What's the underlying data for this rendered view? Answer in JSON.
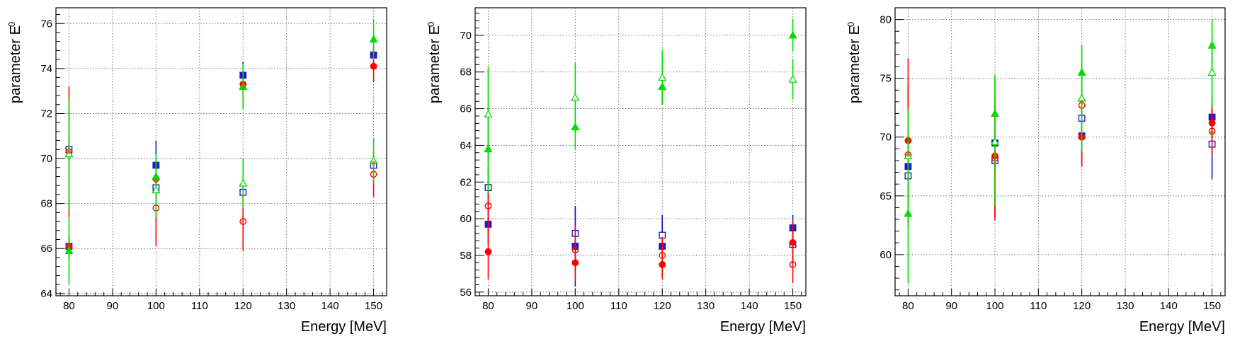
{
  "chart_data": [
    {
      "type": "scatter",
      "xlabel": "Energy [MeV]",
      "ylabel": {
        "main": "parameter E",
        "sub": "0"
      },
      "xlim": [
        77,
        153
      ],
      "ylim": [
        63.9,
        76.7
      ],
      "xticks": [
        80,
        90,
        100,
        110,
        120,
        130,
        140,
        150
      ],
      "yticks": [
        64,
        66,
        68,
        70,
        72,
        74,
        76
      ],
      "grid": true,
      "series": [
        {
          "marker": "square-filled",
          "color": "#1a1acc",
          "points": [
            [
              80,
              66.1,
              0.4
            ],
            [
              100,
              69.7,
              1.1
            ],
            [
              120,
              73.7,
              0.6
            ],
            [
              150,
              74.6,
              0.4
            ]
          ]
        },
        {
          "marker": "square-open",
          "color": "#1a1acc",
          "points": [
            [
              80,
              70.4,
              0.5
            ],
            [
              100,
              68.7,
              0.8
            ],
            [
              120,
              68.5,
              0.5
            ],
            [
              150,
              69.7,
              0.4
            ]
          ]
        },
        {
          "marker": "circle-filled",
          "color": "#ff0000",
          "points": [
            [
              80,
              66.1,
              0.5
            ],
            [
              100,
              69.1,
              0.6
            ],
            [
              120,
              73.3,
              0.7
            ],
            [
              150,
              74.1,
              0.7
            ]
          ]
        },
        {
          "marker": "circle-open",
          "color": "#ff0000",
          "points": [
            [
              80,
              70.3,
              2.9
            ],
            [
              100,
              67.8,
              1.7
            ],
            [
              120,
              67.2,
              1.3
            ],
            [
              150,
              69.3,
              1.0
            ]
          ]
        },
        {
          "marker": "triangle-filled",
          "color": "#00dd00",
          "points": [
            [
              80,
              65.9,
              1.5
            ],
            [
              100,
              69.2,
              1.0
            ],
            [
              120,
              73.2,
              1.0
            ],
            [
              150,
              75.3,
              0.9
            ]
          ]
        },
        {
          "marker": "triangle-open",
          "color": "#00dd00",
          "points": [
            [
              80,
              70.2,
              2.5
            ],
            [
              100,
              68.6,
              1.2
            ],
            [
              120,
              68.9,
              1.1
            ],
            [
              150,
              69.9,
              1.0
            ]
          ]
        },
        {
          "marker": "circle-small",
          "color": "#aa7700",
          "points": [
            [
              80,
              70.3,
              0.0
            ],
            [
              100,
              69.0,
              0.0
            ],
            [
              120,
              73.2,
              0.0
            ],
            [
              150,
              69.8,
              0.0
            ]
          ]
        }
      ]
    },
    {
      "type": "scatter",
      "xlabel": "Energy [MeV]",
      "ylabel": {
        "main": "parameter E",
        "sub": "0"
      },
      "xlim": [
        77,
        153
      ],
      "ylim": [
        55.8,
        71.5
      ],
      "xticks": [
        80,
        90,
        100,
        110,
        120,
        130,
        140,
        150
      ],
      "yticks": [
        56,
        58,
        60,
        62,
        64,
        66,
        68,
        70
      ],
      "grid": true,
      "series": [
        {
          "marker": "square-filled",
          "color": "#1a1acc",
          "points": [
            [
              80,
              59.7,
              1.0
            ],
            [
              100,
              58.5,
              2.2
            ],
            [
              120,
              58.5,
              1.7
            ],
            [
              150,
              59.5,
              0.7
            ]
          ]
        },
        {
          "marker": "square-open",
          "color": "#1a1acc",
          "points": [
            [
              80,
              61.7,
              1.2
            ],
            [
              100,
              59.2,
              1.4
            ],
            [
              120,
              59.1,
              1.1
            ],
            [
              150,
              58.6,
              0.8
            ]
          ]
        },
        {
          "marker": "circle-filled",
          "color": "#ff0000",
          "points": [
            [
              80,
              58.2,
              1.5
            ],
            [
              100,
              57.6,
              1.0
            ],
            [
              120,
              57.5,
              0.8
            ],
            [
              150,
              58.7,
              1.2
            ]
          ]
        },
        {
          "marker": "circle-open",
          "color": "#ff0000",
          "points": [
            [
              80,
              60.7,
              1.3
            ],
            [
              100,
              58.3,
              1.3
            ],
            [
              120,
              58.0,
              1.0
            ],
            [
              150,
              57.5,
              1.0
            ]
          ]
        },
        {
          "marker": "triangle-filled",
          "color": "#00dd00",
          "points": [
            [
              80,
              63.8,
              2.4
            ],
            [
              100,
              65.0,
              1.2
            ],
            [
              120,
              67.2,
              1.0
            ],
            [
              150,
              70.0,
              0.9
            ]
          ]
        },
        {
          "marker": "triangle-open",
          "color": "#00dd00",
          "points": [
            [
              80,
              65.7,
              2.6
            ],
            [
              100,
              66.6,
              1.9
            ],
            [
              120,
              67.7,
              1.5
            ],
            [
              150,
              67.6,
              1.1
            ]
          ]
        }
      ]
    },
    {
      "type": "scatter",
      "xlabel": "Energy [MeV]",
      "ylabel": {
        "main": "parameter E",
        "sub": "0"
      },
      "xlim": [
        77,
        153
      ],
      "ylim": [
        56.5,
        81.0
      ],
      "xticks": [
        80,
        90,
        100,
        110,
        120,
        130,
        140,
        150
      ],
      "yticks": [
        60,
        65,
        70,
        75,
        80
      ],
      "grid": true,
      "series": [
        {
          "marker": "square-filled",
          "color": "#1a1acc",
          "points": [
            [
              80,
              67.5,
              1.2
            ],
            [
              100,
              69.5,
              1.0
            ],
            [
              120,
              70.1,
              2.5
            ],
            [
              150,
              71.7,
              1.8
            ]
          ]
        },
        {
          "marker": "square-open",
          "color": "#1a1acc",
          "points": [
            [
              80,
              66.7,
              1.5
            ],
            [
              100,
              68.0,
              1.3
            ],
            [
              120,
              71.6,
              2.0
            ],
            [
              150,
              69.4,
              3.0
            ]
          ]
        },
        {
          "marker": "circle-filled",
          "color": "#ff0000",
          "points": [
            [
              80,
              69.7,
              7.0
            ],
            [
              100,
              68.4,
              5.5
            ],
            [
              120,
              70.0,
              2.5
            ],
            [
              150,
              71.2,
              1.5
            ]
          ]
        },
        {
          "marker": "circle-open",
          "color": "#ff0000",
          "points": [
            [
              80,
              68.5,
              6.0
            ],
            [
              100,
              68.2,
              5.0
            ],
            [
              120,
              72.7,
              2.0
            ],
            [
              150,
              70.5,
              2.0
            ]
          ]
        },
        {
          "marker": "triangle-filled",
          "color": "#00dd00",
          "points": [
            [
              80,
              63.5,
              6.0
            ],
            [
              100,
              72.0,
              3.3
            ],
            [
              120,
              75.5,
              2.3
            ],
            [
              150,
              77.8,
              2.2
            ]
          ]
        },
        {
          "marker": "triangle-open",
          "color": "#00dd00",
          "points": [
            [
              80,
              68.4,
              4.0
            ],
            [
              100,
              69.6,
              5.5
            ],
            [
              120,
              73.3,
              4.5
            ],
            [
              150,
              75.5,
              3.0
            ]
          ]
        },
        {
          "marker": "circle-small",
          "color": "#aa7700",
          "points": [
            [
              80,
              68.5,
              0.0
            ],
            [
              100,
              68.5,
              0.0
            ],
            [
              120,
              73.0,
              0.0
            ],
            [
              150,
              70.4,
              0.0
            ]
          ]
        }
      ]
    }
  ]
}
